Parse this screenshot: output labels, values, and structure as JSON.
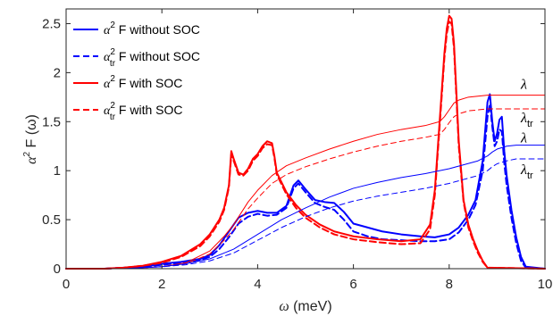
{
  "chart_data": {
    "type": "line",
    "xlabel": {
      "symbol": "ω",
      "unit": " (meV)"
    },
    "ylabel": {
      "main": "α",
      "sup": "2",
      "rest": " F (ω)"
    },
    "xlim": [
      0,
      10
    ],
    "ylim": [
      0,
      2.65
    ],
    "xticks": [
      "0",
      "2",
      "4",
      "6",
      "8",
      "10"
    ],
    "yticks": [
      "0",
      "0.5",
      "1",
      "1.5",
      "2",
      "2.5"
    ],
    "grid": false,
    "legend_position": "top-left",
    "legend": [
      {
        "main": "α",
        "sup": "2",
        "sub": "",
        "rest": " F without SOC",
        "color": "#0000ff",
        "dash": false
      },
      {
        "main": "α",
        "sup": "2",
        "sub": "tr",
        "rest": " F without SOC",
        "color": "#0000ff",
        "dash": true
      },
      {
        "main": "α",
        "sup": "2",
        "sub": "",
        "rest": " F with SOC",
        "color": "#ff0000",
        "dash": false
      },
      {
        "main": "α",
        "sup": "2",
        "sub": "tr",
        "rest": " F with SOC",
        "color": "#ff0000",
        "dash": true
      }
    ],
    "end_labels": [
      {
        "main": "λ",
        "sub": "",
        "y": 1.77
      },
      {
        "main": "λ",
        "sub": "tr",
        "y": 1.63
      },
      {
        "main": "λ",
        "sub": "",
        "y": 1.26
      },
      {
        "main": "λ",
        "sub": "tr",
        "y": 1.12
      }
    ],
    "series": [
      {
        "name": "α² F without SOC",
        "color": "#0000ff",
        "dash": false,
        "width": 2,
        "x": [
          0,
          0.8,
          1.2,
          1.6,
          2.0,
          2.4,
          2.8,
          3.0,
          3.2,
          3.4,
          3.6,
          3.8,
          4.0,
          4.2,
          4.4,
          4.6,
          4.75,
          4.85,
          5.0,
          5.2,
          5.4,
          5.6,
          5.8,
          6.0,
          6.3,
          6.6,
          7.0,
          7.4,
          7.7,
          8.0,
          8.2,
          8.4,
          8.55,
          8.7,
          8.8,
          8.85,
          8.9,
          8.95,
          9.0,
          9.05,
          9.1,
          9.15,
          9.2,
          9.3,
          9.4,
          9.5,
          9.6,
          10
        ],
        "y": [
          0,
          0.0,
          0.01,
          0.02,
          0.05,
          0.07,
          0.1,
          0.14,
          0.24,
          0.38,
          0.52,
          0.57,
          0.59,
          0.57,
          0.57,
          0.64,
          0.85,
          0.9,
          0.81,
          0.7,
          0.68,
          0.67,
          0.58,
          0.46,
          0.42,
          0.38,
          0.35,
          0.33,
          0.32,
          0.35,
          0.42,
          0.55,
          0.7,
          1.1,
          1.7,
          1.78,
          1.5,
          1.3,
          1.38,
          1.52,
          1.55,
          1.2,
          0.95,
          0.6,
          0.32,
          0.12,
          0.02,
          0
        ]
      },
      {
        "name": "α²tr F without SOC",
        "color": "#0000ff",
        "dash": true,
        "width": 2,
        "x": [
          0,
          0.8,
          1.2,
          1.6,
          2.0,
          2.4,
          2.8,
          3.0,
          3.2,
          3.4,
          3.6,
          3.8,
          4.0,
          4.2,
          4.4,
          4.6,
          4.75,
          4.85,
          5.0,
          5.2,
          5.4,
          5.6,
          5.8,
          6.0,
          6.3,
          6.6,
          7.0,
          7.4,
          7.7,
          8.0,
          8.2,
          8.4,
          8.55,
          8.7,
          8.8,
          8.85,
          8.9,
          8.95,
          9.0,
          9.05,
          9.1,
          9.15,
          9.2,
          9.3,
          9.4,
          9.5,
          9.6,
          10
        ],
        "y": [
          0,
          0.0,
          0.01,
          0.02,
          0.04,
          0.06,
          0.09,
          0.12,
          0.2,
          0.32,
          0.46,
          0.53,
          0.56,
          0.54,
          0.55,
          0.62,
          0.82,
          0.87,
          0.78,
          0.67,
          0.63,
          0.6,
          0.5,
          0.38,
          0.33,
          0.3,
          0.29,
          0.28,
          0.28,
          0.3,
          0.37,
          0.5,
          0.65,
          1.0,
          1.55,
          1.68,
          1.45,
          1.25,
          1.3,
          1.42,
          1.4,
          1.08,
          0.85,
          0.52,
          0.26,
          0.08,
          0.01,
          0
        ]
      },
      {
        "name": "α² F with SOC",
        "color": "#ff0000",
        "dash": false,
        "width": 2,
        "x": [
          0,
          0.8,
          1.2,
          1.6,
          2.0,
          2.4,
          2.8,
          3.0,
          3.2,
          3.3,
          3.4,
          3.45,
          3.5,
          3.6,
          3.7,
          3.8,
          3.9,
          4.0,
          4.1,
          4.2,
          4.3,
          4.35,
          4.4,
          4.5,
          4.6,
          4.8,
          5.0,
          5.3,
          5.6,
          6.0,
          6.5,
          7.0,
          7.4,
          7.6,
          7.7,
          7.8,
          7.9,
          7.95,
          8.0,
          8.05,
          8.1,
          8.15,
          8.2,
          8.3,
          8.4,
          8.5,
          8.6,
          8.7,
          8.8,
          10
        ],
        "y": [
          0,
          0.0,
          0.01,
          0.03,
          0.07,
          0.13,
          0.25,
          0.35,
          0.5,
          0.62,
          0.85,
          1.2,
          1.12,
          0.98,
          0.96,
          1.02,
          1.12,
          1.17,
          1.25,
          1.3,
          1.28,
          1.15,
          0.98,
          0.88,
          0.78,
          0.65,
          0.55,
          0.45,
          0.38,
          0.33,
          0.3,
          0.28,
          0.3,
          0.45,
          0.8,
          1.5,
          2.2,
          2.45,
          2.58,
          2.55,
          2.3,
          1.8,
          1.3,
          0.7,
          0.45,
          0.3,
          0.18,
          0.08,
          0.01,
          0
        ]
      },
      {
        "name": "α²tr F with SOC",
        "color": "#ff0000",
        "dash": true,
        "width": 2,
        "x": [
          0,
          0.8,
          1.2,
          1.6,
          2.0,
          2.4,
          2.8,
          3.0,
          3.2,
          3.3,
          3.4,
          3.45,
          3.5,
          3.6,
          3.7,
          3.8,
          3.9,
          4.0,
          4.1,
          4.2,
          4.3,
          4.35,
          4.4,
          4.5,
          4.6,
          4.8,
          5.0,
          5.3,
          5.6,
          6.0,
          6.5,
          7.0,
          7.4,
          7.6,
          7.7,
          7.8,
          7.9,
          7.95,
          8.0,
          8.05,
          8.1,
          8.15,
          8.2,
          8.3,
          8.4,
          8.5,
          8.6,
          8.7,
          8.8,
          10
        ],
        "y": [
          0,
          0.0,
          0.01,
          0.03,
          0.06,
          0.12,
          0.23,
          0.33,
          0.48,
          0.6,
          0.83,
          1.17,
          1.1,
          0.96,
          0.95,
          1.0,
          1.1,
          1.15,
          1.23,
          1.27,
          1.26,
          1.13,
          0.96,
          0.86,
          0.76,
          0.62,
          0.52,
          0.42,
          0.35,
          0.3,
          0.27,
          0.25,
          0.26,
          0.4,
          0.75,
          1.45,
          2.15,
          2.4,
          2.52,
          2.5,
          2.25,
          1.75,
          1.25,
          0.68,
          0.42,
          0.28,
          0.16,
          0.07,
          0.01,
          0
        ]
      },
      {
        "name": "λ with SOC",
        "color": "#ff0000",
        "dash": false,
        "width": 1,
        "x": [
          0,
          1.2,
          2.0,
          2.5,
          3.0,
          3.3,
          3.5,
          3.8,
          4.0,
          4.3,
          4.6,
          5.0,
          5.5,
          6.0,
          6.5,
          7.0,
          7.5,
          7.8,
          7.9,
          8.0,
          8.1,
          8.2,
          8.4,
          8.6,
          8.8,
          10
        ],
        "y": [
          0,
          0.0,
          0.02,
          0.06,
          0.18,
          0.33,
          0.45,
          0.68,
          0.8,
          0.95,
          1.05,
          1.13,
          1.22,
          1.3,
          1.37,
          1.42,
          1.46,
          1.5,
          1.55,
          1.62,
          1.69,
          1.72,
          1.75,
          1.76,
          1.77,
          1.77
        ]
      },
      {
        "name": "λtr with SOC",
        "color": "#ff0000",
        "dash": true,
        "width": 1,
        "x": [
          0,
          1.2,
          2.0,
          2.5,
          3.0,
          3.3,
          3.5,
          3.8,
          4.0,
          4.3,
          4.6,
          5.0,
          5.5,
          6.0,
          6.5,
          7.0,
          7.5,
          7.8,
          7.9,
          8.0,
          8.1,
          8.2,
          8.4,
          8.6,
          8.8,
          10
        ],
        "y": [
          0,
          0.0,
          0.02,
          0.05,
          0.15,
          0.29,
          0.4,
          0.61,
          0.72,
          0.87,
          0.96,
          1.04,
          1.12,
          1.19,
          1.25,
          1.3,
          1.34,
          1.37,
          1.42,
          1.49,
          1.55,
          1.58,
          1.61,
          1.62,
          1.63,
          1.63
        ]
      },
      {
        "name": "λ without SOC",
        "color": "#0000ff",
        "dash": false,
        "width": 1,
        "x": [
          0,
          1.2,
          2.0,
          2.5,
          3.0,
          3.5,
          4.0,
          4.5,
          5.0,
          5.5,
          6.0,
          6.5,
          7.0,
          7.5,
          8.0,
          8.3,
          8.6,
          8.8,
          8.9,
          9.0,
          9.2,
          9.4,
          9.6,
          10
        ],
        "y": [
          0,
          0.0,
          0.02,
          0.05,
          0.1,
          0.2,
          0.35,
          0.5,
          0.62,
          0.73,
          0.82,
          0.88,
          0.93,
          0.97,
          1.02,
          1.06,
          1.1,
          1.15,
          1.19,
          1.22,
          1.25,
          1.26,
          1.26,
          1.26
        ]
      },
      {
        "name": "λtr without SOC",
        "color": "#0000ff",
        "dash": true,
        "width": 1,
        "x": [
          0,
          1.2,
          2.0,
          2.5,
          3.0,
          3.5,
          4.0,
          4.5,
          5.0,
          5.5,
          6.0,
          6.5,
          7.0,
          7.5,
          8.0,
          8.3,
          8.6,
          8.8,
          8.9,
          9.0,
          9.2,
          9.4,
          9.6,
          10
        ],
        "y": [
          0,
          0.0,
          0.02,
          0.04,
          0.08,
          0.16,
          0.29,
          0.42,
          0.53,
          0.62,
          0.69,
          0.74,
          0.78,
          0.82,
          0.87,
          0.91,
          0.95,
          1.0,
          1.04,
          1.07,
          1.1,
          1.12,
          1.12,
          1.12
        ]
      }
    ]
  }
}
